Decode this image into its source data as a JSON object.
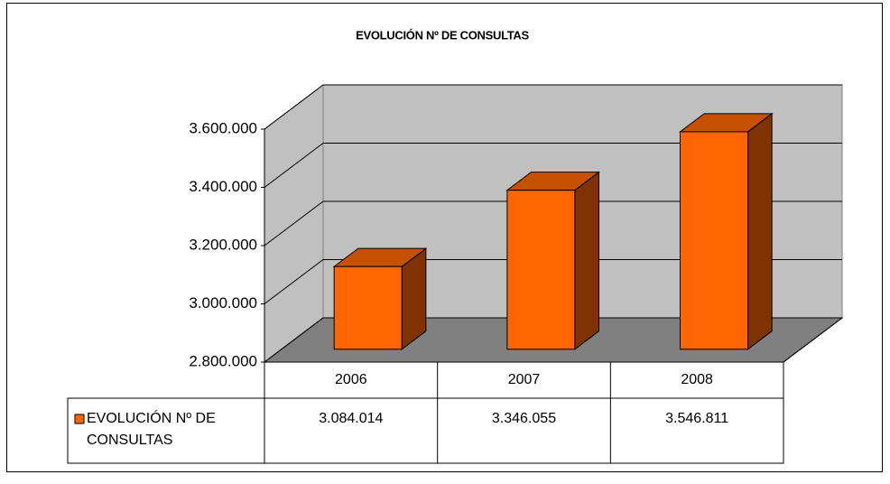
{
  "chart_data": {
    "type": "bar3d",
    "title": "EVOLUCIÓN Nº DE CONSULTAS",
    "categories": [
      "2006",
      "2007",
      "2008"
    ],
    "series": [
      {
        "name": "EVOLUCIÓN Nº DE CONSULTAS",
        "color": "#ff6600",
        "values": [
          3084014,
          3346055,
          3546811
        ],
        "value_labels": [
          "3.084.014",
          "3.346.055",
          "3.546.811"
        ]
      }
    ],
    "ylim": [
      2800000,
      3600000
    ],
    "yticks": [
      {
        "value": 2800000,
        "label": "2.800.000"
      },
      {
        "value": 3000000,
        "label": "3.000.000"
      },
      {
        "value": 3200000,
        "label": "3.200.000"
      },
      {
        "value": 3400000,
        "label": "3.400.000"
      },
      {
        "value": 3600000,
        "label": "3.600.000"
      }
    ],
    "grid": true,
    "data_table": true
  }
}
